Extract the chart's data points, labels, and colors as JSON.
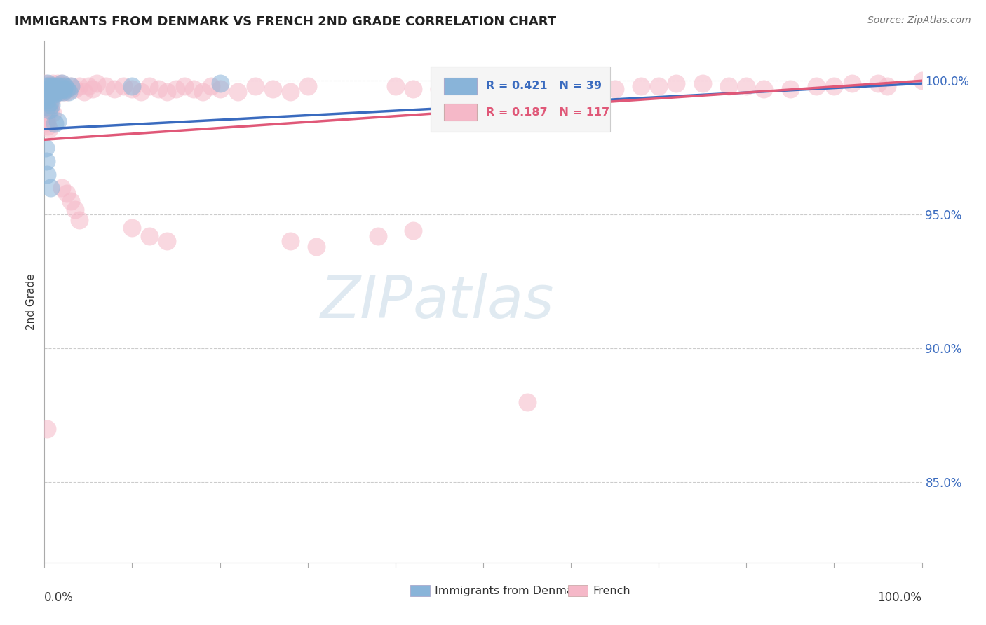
{
  "title": "IMMIGRANTS FROM DENMARK VS FRENCH 2ND GRADE CORRELATION CHART",
  "source": "Source: ZipAtlas.com",
  "ylabel": "2nd Grade",
  "blue_R": 0.421,
  "blue_N": 39,
  "pink_R": 0.187,
  "pink_N": 117,
  "blue_color": "#89b4d9",
  "pink_color": "#f5b8c8",
  "blue_line_color": "#3a6bbf",
  "pink_line_color": "#e05878",
  "ytick_labels": [
    "85.0%",
    "90.0%",
    "95.0%",
    "100.0%"
  ],
  "ytick_values": [
    0.85,
    0.9,
    0.95,
    1.0
  ],
  "xlim": [
    0.0,
    1.0
  ],
  "ylim": [
    0.82,
    1.015
  ],
  "grid_color": "#cccccc",
  "watermark_zip": "ZIP",
  "watermark_atlas": "atlas"
}
